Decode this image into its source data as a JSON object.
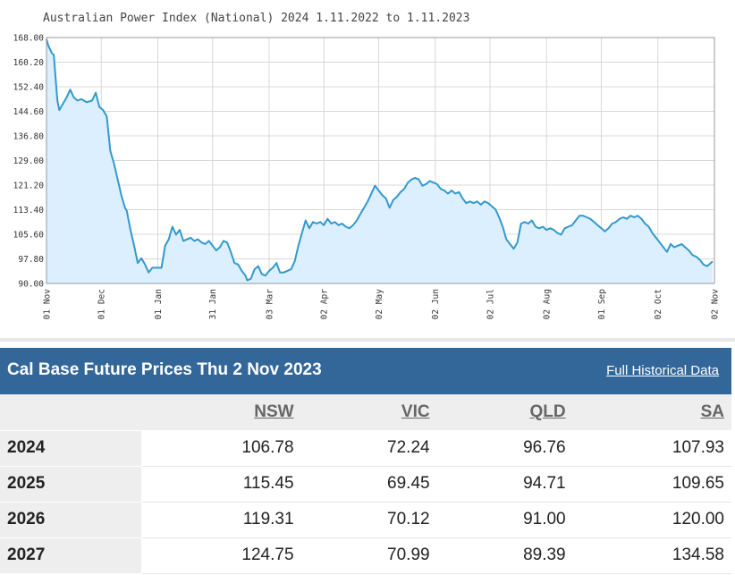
{
  "chart_data": {
    "type": "area",
    "title": "Australian Power Index (National) 2024 1.11.2022 to 1.11.2023",
    "xlabel": "",
    "ylabel": "",
    "ylim": [
      90.0,
      168.0
    ],
    "y_ticks": [
      "168.00",
      "160.20",
      "152.40",
      "144.60",
      "136.80",
      "129.00",
      "121.20",
      "113.40",
      "105.60",
      "97.80",
      "90.00"
    ],
    "x_ticks": [
      {
        "date": "2022-11-01",
        "label": "01 Nov"
      },
      {
        "date": "2022-12-01",
        "label": "01 Dec"
      },
      {
        "date": "2023-01-01",
        "label": "01 Jan"
      },
      {
        "date": "2023-01-31",
        "label": "31 Jan"
      },
      {
        "date": "2023-03-03",
        "label": "03 Mar"
      },
      {
        "date": "2023-04-02",
        "label": "02 Apr"
      },
      {
        "date": "2023-05-02",
        "label": "02 May"
      },
      {
        "date": "2023-06-02",
        "label": "02 Jun"
      },
      {
        "date": "2023-07-02",
        "label": "02 Jul"
      },
      {
        "date": "2023-08-02",
        "label": "02 Aug"
      },
      {
        "date": "2023-09-01",
        "label": "01 Sep"
      },
      {
        "date": "2023-10-02",
        "label": "02 Oct"
      },
      {
        "date": "2023-11-02",
        "label": "02 Nov"
      }
    ],
    "x_start": "2022-11-01",
    "x_end": "2023-11-02",
    "grid": true,
    "colors": {
      "line": "#3399cc",
      "fill": "#dcefff",
      "grid": "#d8d8d8"
    },
    "series": [
      {
        "points": [
          [
            "2022-11-01",
            167.5
          ],
          [
            "2022-11-02",
            165.5
          ],
          [
            "2022-11-04",
            163.0
          ],
          [
            "2022-11-05",
            162.5
          ],
          [
            "2022-11-06",
            155.0
          ],
          [
            "2022-11-07",
            148.0
          ],
          [
            "2022-11-08",
            145.0
          ],
          [
            "2022-11-10",
            147.0
          ],
          [
            "2022-11-12",
            149.0
          ],
          [
            "2022-11-14",
            151.5
          ],
          [
            "2022-11-16",
            149.0
          ],
          [
            "2022-11-18",
            148.0
          ],
          [
            "2022-11-20",
            148.5
          ],
          [
            "2022-11-23",
            147.5
          ],
          [
            "2022-11-26",
            148.0
          ],
          [
            "2022-11-28",
            150.5
          ],
          [
            "2022-11-30",
            146.0
          ],
          [
            "2022-12-02",
            145.0
          ],
          [
            "2022-12-04",
            143.0
          ],
          [
            "2022-12-06",
            132.0
          ],
          [
            "2022-12-08",
            128.0
          ],
          [
            "2022-12-10",
            123.0
          ],
          [
            "2022-12-12",
            118.0
          ],
          [
            "2022-12-14",
            114.0
          ],
          [
            "2022-12-15",
            113.0
          ],
          [
            "2022-12-17",
            107.0
          ],
          [
            "2022-12-19",
            102.0
          ],
          [
            "2022-12-21",
            96.5
          ],
          [
            "2022-12-23",
            98.0
          ],
          [
            "2022-12-25",
            96.0
          ],
          [
            "2022-12-27",
            93.5
          ],
          [
            "2022-12-29",
            95.0
          ],
          [
            "2023-01-01",
            95.0
          ],
          [
            "2023-01-03",
            95.0
          ],
          [
            "2023-01-05",
            102.0
          ],
          [
            "2023-01-07",
            104.0
          ],
          [
            "2023-01-09",
            108.0
          ],
          [
            "2023-01-11",
            105.5
          ],
          [
            "2023-01-13",
            107.0
          ],
          [
            "2023-01-15",
            103.5
          ],
          [
            "2023-01-17",
            104.0
          ],
          [
            "2023-01-19",
            104.5
          ],
          [
            "2023-01-21",
            103.5
          ],
          [
            "2023-01-23",
            104.0
          ],
          [
            "2023-01-25",
            103.0
          ],
          [
            "2023-01-27",
            102.5
          ],
          [
            "2023-01-29",
            103.5
          ],
          [
            "2023-01-31",
            102.0
          ],
          [
            "2023-02-02",
            100.5
          ],
          [
            "2023-02-04",
            101.5
          ],
          [
            "2023-02-06",
            103.5
          ],
          [
            "2023-02-08",
            103.0
          ],
          [
            "2023-02-10",
            100.0
          ],
          [
            "2023-02-12",
            96.5
          ],
          [
            "2023-02-14",
            96.0
          ],
          [
            "2023-02-16",
            94.0
          ],
          [
            "2023-02-18",
            92.5
          ],
          [
            "2023-02-19",
            91.0
          ],
          [
            "2023-02-21",
            91.5
          ],
          [
            "2023-02-23",
            94.5
          ],
          [
            "2023-02-25",
            95.5
          ],
          [
            "2023-02-27",
            93.0
          ],
          [
            "2023-03-01",
            92.5
          ],
          [
            "2023-03-03",
            94.0
          ],
          [
            "2023-03-05",
            95.0
          ],
          [
            "2023-03-07",
            96.5
          ],
          [
            "2023-03-09",
            93.5
          ],
          [
            "2023-03-11",
            93.5
          ],
          [
            "2023-03-13",
            94.0
          ],
          [
            "2023-03-15",
            94.5
          ],
          [
            "2023-03-17",
            97.0
          ],
          [
            "2023-03-19",
            102.0
          ],
          [
            "2023-03-21",
            106.0
          ],
          [
            "2023-03-23",
            110.0
          ],
          [
            "2023-03-25",
            107.5
          ],
          [
            "2023-03-27",
            109.5
          ],
          [
            "2023-03-29",
            109.0
          ],
          [
            "2023-03-31",
            109.5
          ],
          [
            "2023-04-02",
            108.5
          ],
          [
            "2023-04-04",
            110.5
          ],
          [
            "2023-04-06",
            109.0
          ],
          [
            "2023-04-08",
            109.5
          ],
          [
            "2023-04-10",
            108.5
          ],
          [
            "2023-04-12",
            109.0
          ],
          [
            "2023-04-14",
            108.0
          ],
          [
            "2023-04-16",
            107.5
          ],
          [
            "2023-04-18",
            108.5
          ],
          [
            "2023-04-20",
            110.0
          ],
          [
            "2023-04-22",
            112.0
          ],
          [
            "2023-04-24",
            114.0
          ],
          [
            "2023-04-26",
            116.0
          ],
          [
            "2023-04-28",
            118.5
          ],
          [
            "2023-04-30",
            121.0
          ],
          [
            "2023-05-02",
            119.5
          ],
          [
            "2023-05-04",
            118.0
          ],
          [
            "2023-05-06",
            117.0
          ],
          [
            "2023-05-08",
            114.0
          ],
          [
            "2023-05-10",
            116.5
          ],
          [
            "2023-05-12",
            117.5
          ],
          [
            "2023-05-14",
            119.0
          ],
          [
            "2023-05-16",
            120.0
          ],
          [
            "2023-05-18",
            122.0
          ],
          [
            "2023-05-20",
            123.0
          ],
          [
            "2023-05-22",
            123.5
          ],
          [
            "2023-05-24",
            123.0
          ],
          [
            "2023-05-26",
            121.0
          ],
          [
            "2023-05-28",
            121.5
          ],
          [
            "2023-05-30",
            122.5
          ],
          [
            "2023-06-01",
            122.0
          ],
          [
            "2023-06-03",
            121.5
          ],
          [
            "2023-06-05",
            120.0
          ],
          [
            "2023-06-07",
            119.5
          ],
          [
            "2023-06-09",
            118.5
          ],
          [
            "2023-06-11",
            119.5
          ],
          [
            "2023-06-13",
            118.5
          ],
          [
            "2023-06-15",
            119.0
          ],
          [
            "2023-06-17",
            117.0
          ],
          [
            "2023-06-19",
            115.5
          ],
          [
            "2023-06-21",
            116.0
          ],
          [
            "2023-06-23",
            115.5
          ],
          [
            "2023-06-25",
            116.0
          ],
          [
            "2023-06-27",
            115.0
          ],
          [
            "2023-06-29",
            116.0
          ],
          [
            "2023-07-01",
            115.5
          ],
          [
            "2023-07-03",
            114.5
          ],
          [
            "2023-07-05",
            113.5
          ],
          [
            "2023-07-07",
            111.0
          ],
          [
            "2023-07-09",
            108.0
          ],
          [
            "2023-07-11",
            104.0
          ],
          [
            "2023-07-13",
            102.5
          ],
          [
            "2023-07-15",
            101.0
          ],
          [
            "2023-07-17",
            103.0
          ],
          [
            "2023-07-19",
            109.0
          ],
          [
            "2023-07-21",
            109.5
          ],
          [
            "2023-07-23",
            109.0
          ],
          [
            "2023-07-25",
            110.0
          ],
          [
            "2023-07-27",
            108.0
          ],
          [
            "2023-07-29",
            107.5
          ],
          [
            "2023-07-31",
            108.0
          ],
          [
            "2023-08-02",
            107.0
          ],
          [
            "2023-08-04",
            107.5
          ],
          [
            "2023-08-06",
            107.0
          ],
          [
            "2023-08-08",
            106.0
          ],
          [
            "2023-08-10",
            105.5
          ],
          [
            "2023-08-12",
            107.5
          ],
          [
            "2023-08-14",
            108.0
          ],
          [
            "2023-08-16",
            108.5
          ],
          [
            "2023-08-18",
            110.0
          ],
          [
            "2023-08-20",
            111.5
          ],
          [
            "2023-08-22",
            111.5
          ],
          [
            "2023-08-24",
            111.0
          ],
          [
            "2023-08-26",
            110.5
          ],
          [
            "2023-08-28",
            109.5
          ],
          [
            "2023-08-30",
            108.5
          ],
          [
            "2023-09-01",
            107.5
          ],
          [
            "2023-09-03",
            106.5
          ],
          [
            "2023-09-05",
            107.5
          ],
          [
            "2023-09-07",
            109.0
          ],
          [
            "2023-09-09",
            109.5
          ],
          [
            "2023-09-11",
            110.5
          ],
          [
            "2023-09-13",
            111.0
          ],
          [
            "2023-09-15",
            110.5
          ],
          [
            "2023-09-17",
            111.5
          ],
          [
            "2023-09-19",
            111.0
          ],
          [
            "2023-09-21",
            111.5
          ],
          [
            "2023-09-23",
            110.5
          ],
          [
            "2023-09-25",
            109.0
          ],
          [
            "2023-09-27",
            108.0
          ],
          [
            "2023-09-29",
            106.0
          ],
          [
            "2023-10-01",
            104.5
          ],
          [
            "2023-10-03",
            103.0
          ],
          [
            "2023-10-05",
            101.5
          ],
          [
            "2023-10-07",
            100.0
          ],
          [
            "2023-10-09",
            102.5
          ],
          [
            "2023-10-11",
            101.5
          ],
          [
            "2023-10-13",
            102.0
          ],
          [
            "2023-10-15",
            102.5
          ],
          [
            "2023-10-17",
            101.5
          ],
          [
            "2023-10-19",
            100.5
          ],
          [
            "2023-10-21",
            99.0
          ],
          [
            "2023-10-23",
            98.5
          ],
          [
            "2023-10-25",
            97.5
          ],
          [
            "2023-10-27",
            96.0
          ],
          [
            "2023-10-29",
            95.5
          ],
          [
            "2023-10-31",
            96.5
          ],
          [
            "2023-11-01",
            97.0
          ]
        ]
      }
    ]
  },
  "table": {
    "title": "Cal Base Future Prices Thu 2 Nov 2023",
    "link_label": "Full Historical Data",
    "columns": [
      "NSW",
      "VIC",
      "QLD",
      "SA"
    ],
    "rows": [
      {
        "year": "2024",
        "values": [
          "106.78",
          "72.24",
          "96.76",
          "107.93"
        ]
      },
      {
        "year": "2025",
        "values": [
          "115.45",
          "69.45",
          "94.71",
          "109.65"
        ]
      },
      {
        "year": "2026",
        "values": [
          "119.31",
          "70.12",
          "91.00",
          "120.00"
        ]
      },
      {
        "year": "2027",
        "values": [
          "124.75",
          "70.99",
          "89.39",
          "134.58"
        ]
      }
    ]
  }
}
